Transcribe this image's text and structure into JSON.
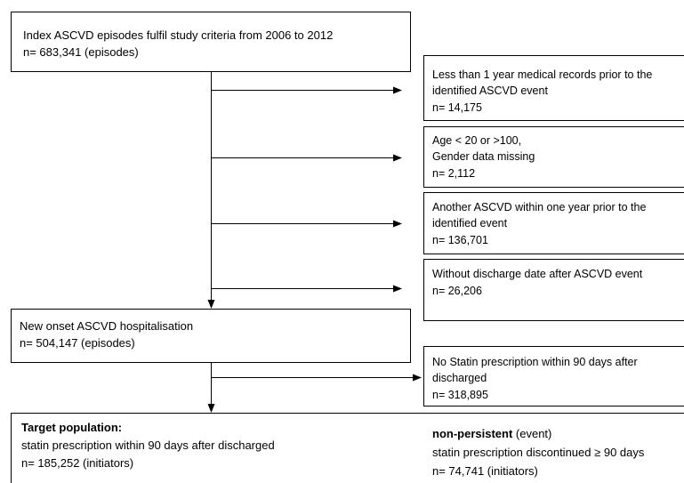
{
  "nodes": [
    {
      "lines": [
        "Index ASCVD episodes fulfil study criteria from 2006 to 2012",
        "n= 683,341 (episodes)"
      ]
    },
    {
      "lines": [
        "Less than 1 year medical records prior to the",
        "identified ASCVD event",
        "n= 14,175"
      ]
    },
    {
      "lines": [
        "Age < 20 or >100,",
        "Gender data missing",
        "n= 2,112"
      ]
    },
    {
      "lines": [
        "Another ASCVD within one year prior to the",
        "identified event",
        "n= 136,701"
      ]
    },
    {
      "lines": [
        "Without discharge date after ASCVD event",
        "n= 26,206"
      ]
    },
    {
      "lines": [
        "New onset ASCVD hospitalisation",
        "n= 504,147 (episodes)"
      ]
    },
    {
      "lines": [
        "No Statin prescription within 90 days after",
        "discharged",
        "n= 318,895"
      ]
    },
    {
      "title": "Target population:",
      "lines": [
        "statin prescription within 90 days after discharged",
        "n= 185,252 (initiators)"
      ]
    },
    {
      "title": "non-persistent",
      "title_suffix": " (event)",
      "lines": [
        "statin prescription discontinued ≥ 90 days",
        "n= 74,741 (initiators)"
      ]
    }
  ]
}
